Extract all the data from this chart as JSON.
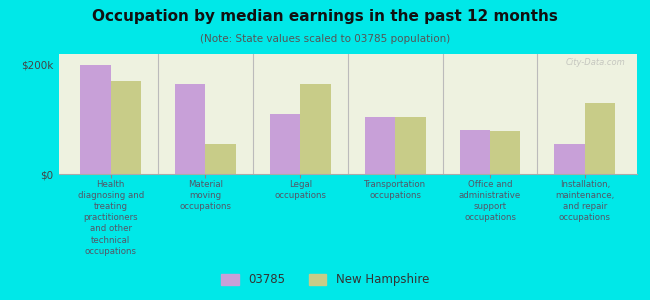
{
  "title": "Occupation by median earnings in the past 12 months",
  "subtitle": "(Note: State values scaled to 03785 population)",
  "categories": [
    "Health\ndiagnosing and\ntreating\npractitioners\nand other\ntechnical\noccupations",
    "Material\nmoving\noccupations",
    "Legal\noccupations",
    "Transportation\noccupations",
    "Office and\nadministrative\nsupport\noccupations",
    "Installation,\nmaintenance,\nand repair\noccupations"
  ],
  "values_03785": [
    200000,
    165000,
    110000,
    105000,
    80000,
    55000
  ],
  "values_nh": [
    170000,
    55000,
    165000,
    105000,
    78000,
    130000
  ],
  "ylim": [
    0,
    220000
  ],
  "yticks": [
    0,
    200000
  ],
  "ytick_labels": [
    "$0",
    "$200k"
  ],
  "color_03785": "#c8a0d8",
  "color_nh": "#c8cc88",
  "background_color": "#00e8e8",
  "plot_bg_color": "#eef2e0",
  "legend_labels": [
    "03785",
    "New Hampshire"
  ],
  "watermark": "City-Data.com"
}
